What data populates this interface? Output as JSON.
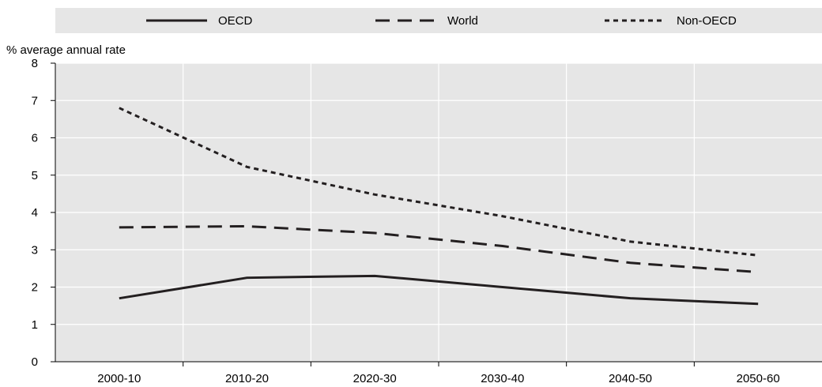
{
  "chart_data": {
    "type": "line",
    "title": "",
    "xlabel": "",
    "ylabel": "% average annual rate",
    "categories": [
      "2000-10",
      "2010-20",
      "2020-30",
      "2030-40",
      "2040-50",
      "2050-60"
    ],
    "ylim": [
      0,
      8
    ],
    "yticks": [
      0,
      1,
      2,
      3,
      4,
      5,
      6,
      7,
      8
    ],
    "grid": true,
    "legend_position": "top",
    "series": [
      {
        "name": "OECD",
        "style": "solid",
        "color": "#231f20",
        "values": [
          1.7,
          2.25,
          2.3,
          2.0,
          1.7,
          1.55
        ]
      },
      {
        "name": "World",
        "style": "dashed",
        "color": "#231f20",
        "values": [
          3.6,
          3.63,
          3.45,
          3.1,
          2.65,
          2.4
        ]
      },
      {
        "name": "Non-OECD",
        "style": "dotted",
        "color": "#231f20",
        "values": [
          6.8,
          5.22,
          4.48,
          3.9,
          3.22,
          2.85
        ]
      }
    ],
    "colors": {
      "background": "#ffffff",
      "plot_area": "#e6e6e6",
      "legend_band": "#e6e6e6",
      "grid": "#ffffff",
      "axis": "#000000"
    }
  }
}
